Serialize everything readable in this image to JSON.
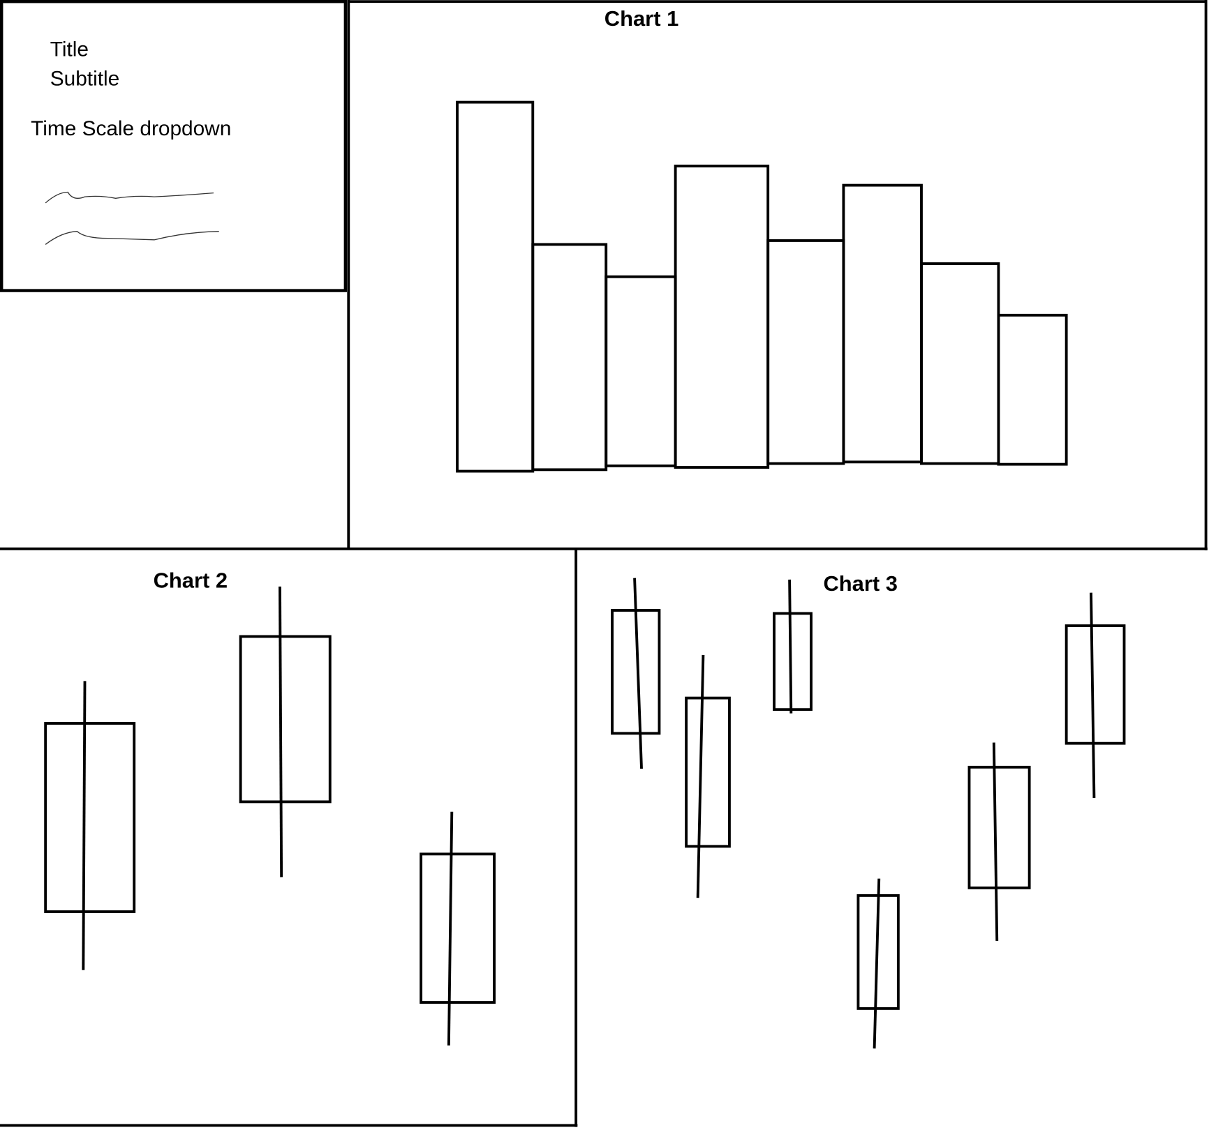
{
  "sidebar": {
    "title": "Title",
    "subtitle": "Subtitle",
    "dropdown": "Time Scale dropdown"
  },
  "charts": [
    {
      "title": "Chart 1"
    },
    {
      "title": "Chart 2"
    },
    {
      "title": "Chart 3"
    }
  ]
}
